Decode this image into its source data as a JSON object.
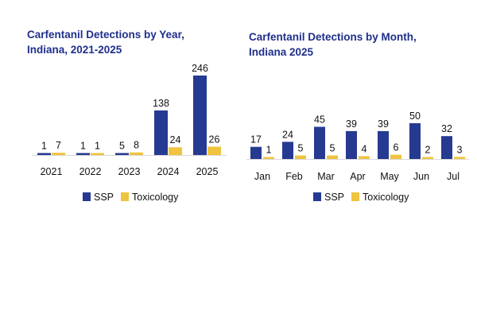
{
  "colors": {
    "ssp": "#263a91",
    "toxicology": "#efc43e",
    "title": "#1f2f8c",
    "baseline": "#d8d8d8",
    "text": "#111111"
  },
  "chart_data": [
    {
      "type": "bar",
      "title": [
        "Carfentanil Detections by Year,",
        "Indiana, 2021-2025"
      ],
      "categories": [
        "2021",
        "2022",
        "2023",
        "2024",
        "2025"
      ],
      "series": [
        {
          "name": "SSP",
          "values": [
            1,
            1,
            5,
            138,
            246
          ]
        },
        {
          "name": "Toxicology",
          "values": [
            7,
            1,
            8,
            24,
            26
          ]
        }
      ],
      "legend": "bottom-center"
    },
    {
      "type": "bar",
      "title": [
        "Carfentanil Detections by Month,",
        "Indiana 2025"
      ],
      "categories": [
        "Jan",
        "Feb",
        "Mar",
        "Apr",
        "May",
        "Jun",
        "Jul"
      ],
      "series": [
        {
          "name": "SSP",
          "values": [
            17,
            24,
            45,
            39,
            39,
            50,
            32
          ]
        },
        {
          "name": "Toxicology",
          "values": [
            1,
            5,
            5,
            4,
            6,
            2,
            3
          ]
        }
      ],
      "legend": "bottom-center"
    }
  ]
}
